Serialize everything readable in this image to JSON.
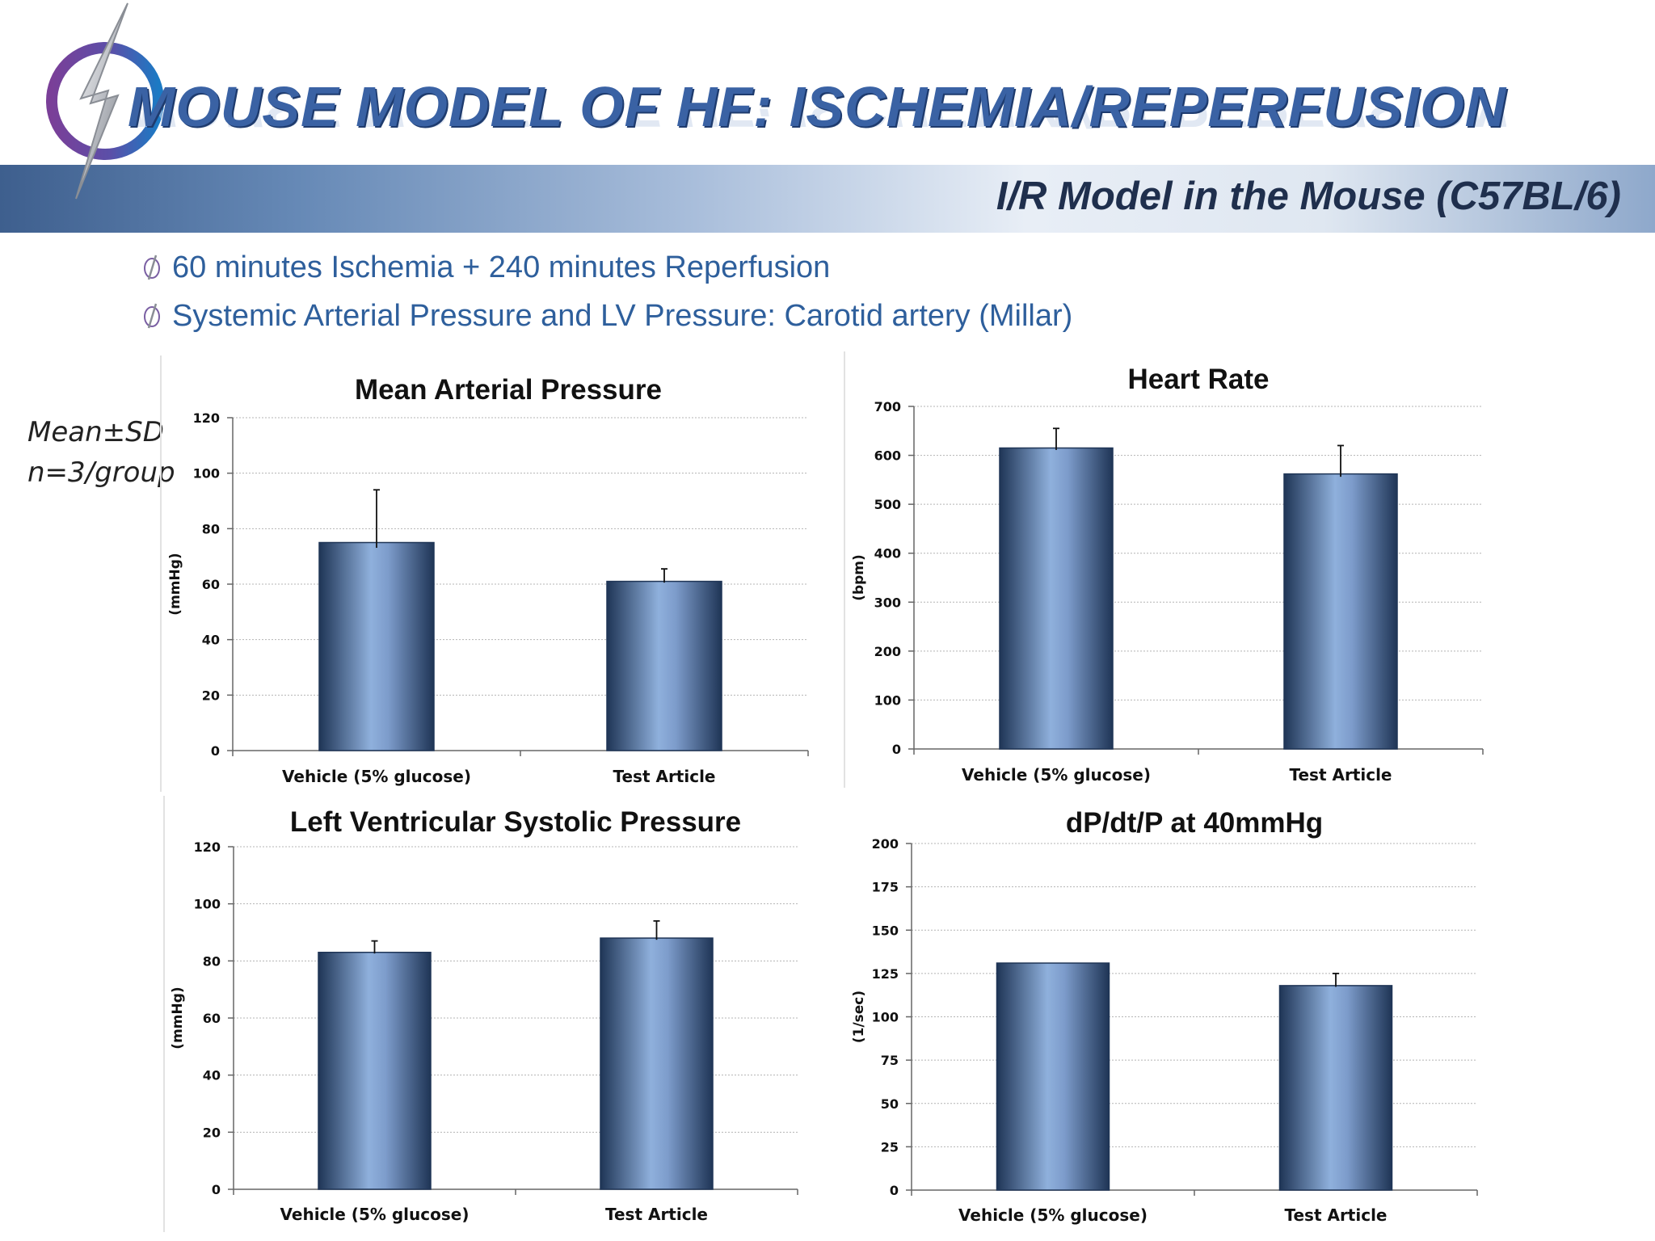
{
  "slide": {
    "title": "MOUSE MODEL OF HF: ISCHEMIA/REPERFUSION",
    "subtitle": "I/R Model in the Mouse (C57BL/6)",
    "bullets": [
      "60 minutes Ischemia + 240 minutes Reperfusion",
      "Systemic Arterial Pressure and LV Pressure: Carotid artery (Millar)"
    ],
    "stats_note": [
      "Mean±SD",
      "n=3/group"
    ],
    "colors": {
      "title": "#3a62a4",
      "bar_dark": "#1f3556",
      "bar_light": "#8fb0dc",
      "bullet_text": "#2e5f9c"
    }
  },
  "chart_data": [
    {
      "type": "bar",
      "title": "Mean Arterial Pressure",
      "xlabel": "",
      "ylabel": "(mmHg)",
      "categories": [
        "Vehicle (5% glucose)",
        "Test Article"
      ],
      "values": [
        75,
        61
      ],
      "errors": [
        19,
        4.5
      ],
      "ylim": [
        0,
        120
      ],
      "yticks": [
        0,
        20,
        40,
        60,
        80,
        100,
        120
      ],
      "grid": true
    },
    {
      "type": "bar",
      "title": "Heart Rate",
      "xlabel": "",
      "ylabel": "(bpm)",
      "categories": [
        "Vehicle (5% glucose)",
        "Test Article"
      ],
      "values": [
        615,
        562
      ],
      "errors": [
        40,
        58
      ],
      "ylim": [
        0,
        700
      ],
      "yticks": [
        0,
        100,
        200,
        300,
        400,
        500,
        600,
        700
      ],
      "grid": true
    },
    {
      "type": "bar",
      "title": "Left Ventricular Systolic Pressure",
      "xlabel": "",
      "ylabel": "(mmHg)",
      "categories": [
        "Vehicle (5% glucose)",
        "Test Article"
      ],
      "values": [
        83,
        88
      ],
      "errors": [
        4,
        6
      ],
      "ylim": [
        0,
        120
      ],
      "yticks": [
        0,
        20,
        40,
        60,
        80,
        100,
        120
      ],
      "grid": true
    },
    {
      "type": "bar",
      "title": "dP/dt/P at 40mmHg",
      "xlabel": "",
      "ylabel": "(1/sec)",
      "categories": [
        "Vehicle (5% glucose)",
        "Test Article"
      ],
      "values": [
        131,
        118
      ],
      "errors": [
        0,
        7
      ],
      "ylim": [
        0,
        200
      ],
      "yticks": [
        0,
        25,
        50,
        75,
        100,
        125,
        150,
        175,
        200
      ],
      "grid": true
    }
  ]
}
